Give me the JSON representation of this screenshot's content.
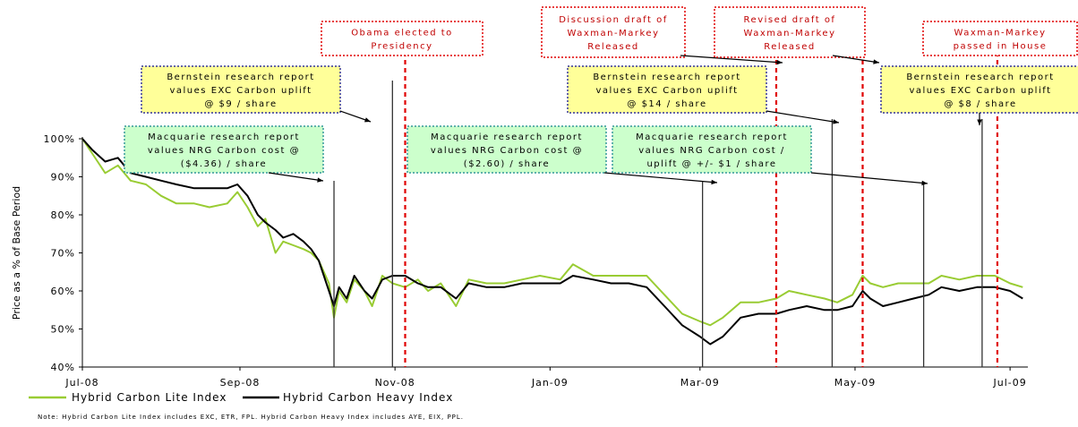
{
  "chart_data": {
    "type": "line",
    "ylabel": "Price as a % of Base Period",
    "yticks": [
      "40%",
      "50%",
      "60%",
      "70%",
      "80%",
      "90%",
      "100%"
    ],
    "ylim": [
      40,
      100
    ],
    "xticks": [
      {
        "label": "Jul-08",
        "date": "2008-07-01"
      },
      {
        "label": "Sep-08",
        "date": "2008-09-01"
      },
      {
        "label": "Nov-08",
        "date": "2008-11-01"
      },
      {
        "label": "Jan-09",
        "date": "2009-01-01"
      },
      {
        "label": "Mar-09",
        "date": "2009-03-01"
      },
      {
        "label": "May-09",
        "date": "2009-05-01"
      },
      {
        "label": "Jul-09",
        "date": "2009-07-01"
      }
    ],
    "xlim": [
      "2008-07-01",
      "2009-07-08"
    ],
    "series": [
      {
        "name": "Hybrid Carbon Lite Index",
        "color": "#99cc33",
        "points": [
          [
            "2008-07-01",
            100
          ],
          [
            "2008-07-05",
            96
          ],
          [
            "2008-07-10",
            91
          ],
          [
            "2008-07-15",
            93
          ],
          [
            "2008-07-20",
            89
          ],
          [
            "2008-07-26",
            88
          ],
          [
            "2008-08-01",
            85
          ],
          [
            "2008-08-07",
            83
          ],
          [
            "2008-08-14",
            83
          ],
          [
            "2008-08-20",
            82
          ],
          [
            "2008-08-27",
            83
          ],
          [
            "2008-08-31",
            86
          ],
          [
            "2008-09-04",
            82
          ],
          [
            "2008-09-08",
            77
          ],
          [
            "2008-09-11",
            79
          ],
          [
            "2008-09-15",
            70
          ],
          [
            "2008-09-18",
            73
          ],
          [
            "2008-09-22",
            72
          ],
          [
            "2008-09-26",
            71
          ],
          [
            "2008-09-29",
            70
          ],
          [
            "2008-10-02",
            68
          ],
          [
            "2008-10-06",
            62
          ],
          [
            "2008-10-08",
            53
          ],
          [
            "2008-10-10",
            60
          ],
          [
            "2008-10-13",
            57
          ],
          [
            "2008-10-16",
            63
          ],
          [
            "2008-10-20",
            60
          ],
          [
            "2008-10-23",
            56
          ],
          [
            "2008-10-27",
            64
          ],
          [
            "2008-10-31",
            62
          ],
          [
            "2008-11-05",
            61
          ],
          [
            "2008-11-10",
            63
          ],
          [
            "2008-11-14",
            60
          ],
          [
            "2008-11-19",
            62
          ],
          [
            "2008-11-25",
            56
          ],
          [
            "2008-11-30",
            63
          ],
          [
            "2008-12-07",
            62
          ],
          [
            "2008-12-14",
            62
          ],
          [
            "2008-12-21",
            63
          ],
          [
            "2008-12-28",
            64
          ],
          [
            "2009-01-05",
            63
          ],
          [
            "2009-01-10",
            67
          ],
          [
            "2009-01-18",
            64
          ],
          [
            "2009-01-25",
            64
          ],
          [
            "2009-02-01",
            64
          ],
          [
            "2009-02-08",
            64
          ],
          [
            "2009-02-15",
            59
          ],
          [
            "2009-02-22",
            54
          ],
          [
            "2009-03-01",
            52
          ],
          [
            "2009-03-05",
            51
          ],
          [
            "2009-03-10",
            53
          ],
          [
            "2009-03-17",
            57
          ],
          [
            "2009-03-24",
            57
          ],
          [
            "2009-03-31",
            58
          ],
          [
            "2009-04-05",
            60
          ],
          [
            "2009-04-12",
            59
          ],
          [
            "2009-04-19",
            58
          ],
          [
            "2009-04-24",
            57
          ],
          [
            "2009-04-30",
            59
          ],
          [
            "2009-05-04",
            64
          ],
          [
            "2009-05-07",
            62
          ],
          [
            "2009-05-12",
            61
          ],
          [
            "2009-05-18",
            62
          ],
          [
            "2009-05-24",
            62
          ],
          [
            "2009-05-30",
            62
          ],
          [
            "2009-06-04",
            64
          ],
          [
            "2009-06-11",
            63
          ],
          [
            "2009-06-18",
            64
          ],
          [
            "2009-06-25",
            64
          ],
          [
            "2009-07-01",
            62
          ],
          [
            "2009-07-06",
            61
          ]
        ]
      },
      {
        "name": "Hybrid Carbon Heavy Index",
        "color": "#000000",
        "points": [
          [
            "2008-07-01",
            100
          ],
          [
            "2008-07-05",
            97
          ],
          [
            "2008-07-10",
            94
          ],
          [
            "2008-07-15",
            95
          ],
          [
            "2008-07-20",
            91
          ],
          [
            "2008-07-26",
            90
          ],
          [
            "2008-08-01",
            89
          ],
          [
            "2008-08-07",
            88
          ],
          [
            "2008-08-14",
            87
          ],
          [
            "2008-08-20",
            87
          ],
          [
            "2008-08-27",
            87
          ],
          [
            "2008-08-31",
            88
          ],
          [
            "2008-09-04",
            85
          ],
          [
            "2008-09-08",
            80
          ],
          [
            "2008-09-11",
            78
          ],
          [
            "2008-09-15",
            76
          ],
          [
            "2008-09-18",
            74
          ],
          [
            "2008-09-22",
            75
          ],
          [
            "2008-09-26",
            73
          ],
          [
            "2008-09-29",
            71
          ],
          [
            "2008-10-02",
            68
          ],
          [
            "2008-10-06",
            60
          ],
          [
            "2008-10-08",
            56
          ],
          [
            "2008-10-10",
            61
          ],
          [
            "2008-10-13",
            58
          ],
          [
            "2008-10-16",
            64
          ],
          [
            "2008-10-20",
            60
          ],
          [
            "2008-10-23",
            58
          ],
          [
            "2008-10-27",
            63
          ],
          [
            "2008-10-31",
            64
          ],
          [
            "2008-11-05",
            64
          ],
          [
            "2008-11-10",
            62
          ],
          [
            "2008-11-14",
            61
          ],
          [
            "2008-11-19",
            61
          ],
          [
            "2008-11-25",
            58
          ],
          [
            "2008-11-30",
            62
          ],
          [
            "2008-12-07",
            61
          ],
          [
            "2008-12-14",
            61
          ],
          [
            "2008-12-21",
            62
          ],
          [
            "2008-12-28",
            62
          ],
          [
            "2009-01-05",
            62
          ],
          [
            "2009-01-10",
            64
          ],
          [
            "2009-01-18",
            63
          ],
          [
            "2009-01-25",
            62
          ],
          [
            "2009-02-01",
            62
          ],
          [
            "2009-02-08",
            61
          ],
          [
            "2009-02-15",
            56
          ],
          [
            "2009-02-22",
            51
          ],
          [
            "2009-03-01",
            48
          ],
          [
            "2009-03-05",
            46
          ],
          [
            "2009-03-10",
            48
          ],
          [
            "2009-03-17",
            53
          ],
          [
            "2009-03-24",
            54
          ],
          [
            "2009-03-31",
            54
          ],
          [
            "2009-04-05",
            55
          ],
          [
            "2009-04-12",
            56
          ],
          [
            "2009-04-19",
            55
          ],
          [
            "2009-04-24",
            55
          ],
          [
            "2009-04-30",
            56
          ],
          [
            "2009-05-04",
            60
          ],
          [
            "2009-05-07",
            58
          ],
          [
            "2009-05-12",
            56
          ],
          [
            "2009-05-18",
            57
          ],
          [
            "2009-05-24",
            58
          ],
          [
            "2009-05-30",
            59
          ],
          [
            "2009-06-04",
            61
          ],
          [
            "2009-06-11",
            60
          ],
          [
            "2009-06-18",
            61
          ],
          [
            "2009-06-25",
            61
          ],
          [
            "2009-07-01",
            60
          ],
          [
            "2009-07-06",
            58
          ]
        ]
      }
    ],
    "events": [
      {
        "date": "2008-10-08",
        "style": "solid",
        "lines": [
          "Macquarie research report",
          "values NRG Carbon cost @",
          "($4.36) / share"
        ],
        "box": "green"
      },
      {
        "date": "2008-10-31",
        "style": "solid",
        "lines": [
          "Bernstein research report",
          "values EXC Carbon uplift",
          "@ $9 / share"
        ],
        "box": "yellow"
      },
      {
        "date": "2008-11-05",
        "style": "dashed",
        "lines": [
          "Obama elected to",
          "Presidency"
        ],
        "box": "red"
      },
      {
        "date": "2009-03-02",
        "style": "solid",
        "lines": [
          "Macquarie research report",
          "values NRG Carbon cost @",
          "($2.60) / share"
        ],
        "box": "green"
      },
      {
        "date": "2009-03-31",
        "style": "dashed",
        "lines": [
          "Discussion draft of",
          "Waxman-Markey",
          "Released"
        ],
        "box": "red"
      },
      {
        "date": "2009-04-22",
        "style": "solid",
        "lines": [
          "Bernstein research report",
          "values EXC Carbon uplift",
          "@ $14 / share"
        ],
        "box": "yellow"
      },
      {
        "date": "2009-05-04",
        "style": "dashed",
        "lines": [
          "Revised draft of",
          "Waxman-Markey",
          "Released"
        ],
        "box": "red"
      },
      {
        "date": "2009-05-28",
        "style": "solid",
        "lines": [
          "Macquarie research report",
          "values NRG Carbon cost /",
          "uplift @ +/- $1 / share"
        ],
        "box": "green"
      },
      {
        "date": "2009-06-20",
        "style": "solid",
        "lines": [
          "Bernstein research report",
          "values EXC Carbon uplift",
          "@ $8 / share"
        ],
        "box": "yellow"
      },
      {
        "date": "2009-06-26",
        "style": "dashed",
        "lines": [
          "Waxman-Markey",
          "passed in House"
        ],
        "box": "red"
      }
    ],
    "legend": [
      {
        "label": "Hybrid  Carbon Lite Index",
        "color": "#99cc33"
      },
      {
        "label": "Hybrid Carbon Heavy Index",
        "color": "#000000"
      }
    ],
    "note": "Note: Hybrid Carbon Lite Index includes EXC, ETR, FPL.  Hybrid Carbon Heavy Index includes AYE, EIX, PPL.",
    "colors": {
      "red": "#e00000",
      "yellowBox": "#ffff99",
      "greenBox": "#ccffcc",
      "blueBorder": "#333399",
      "greenBorder": "#339999"
    }
  }
}
